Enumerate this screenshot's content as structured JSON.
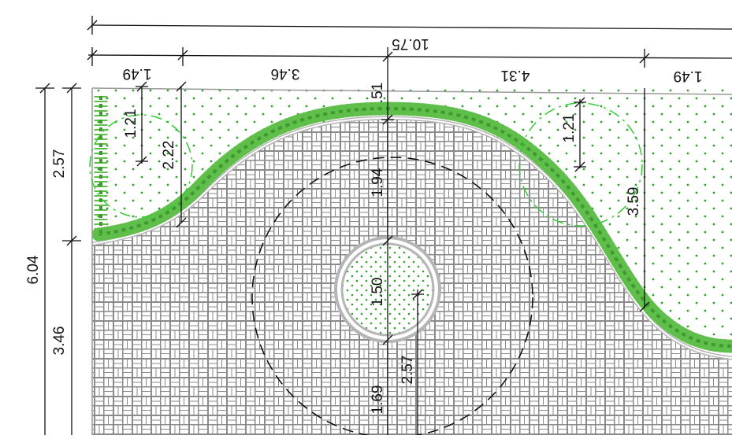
{
  "drawing": {
    "colors": {
      "line": "#111111",
      "hedge": "#5fbf4a",
      "hedge_dark": "#3e9a2e",
      "dots": "#2aa52a",
      "circle_dash": "#33cc33",
      "pavers": "#8a8a8a",
      "edging": "#b5b5b5"
    },
    "dimensions": {
      "overall_width": "10.75",
      "seg_left": "1.49",
      "seg_left_center": "3.46",
      "seg_right_center": "4.31",
      "seg_right": "1.49",
      "height_total": "6.04",
      "height_upper": "2.57",
      "height_lower": "3.46",
      "tree_left_radius": "1.21",
      "left_bed_depth": "2.22",
      "tree_right_radius": "1.21",
      "right_bed_depth": "3.59",
      "top_gap": ".51",
      "center_to_pond": "1.94",
      "pond_diameter": "1.50",
      "pond_offset": "2.57",
      "lower_depth": "1.69"
    }
  }
}
